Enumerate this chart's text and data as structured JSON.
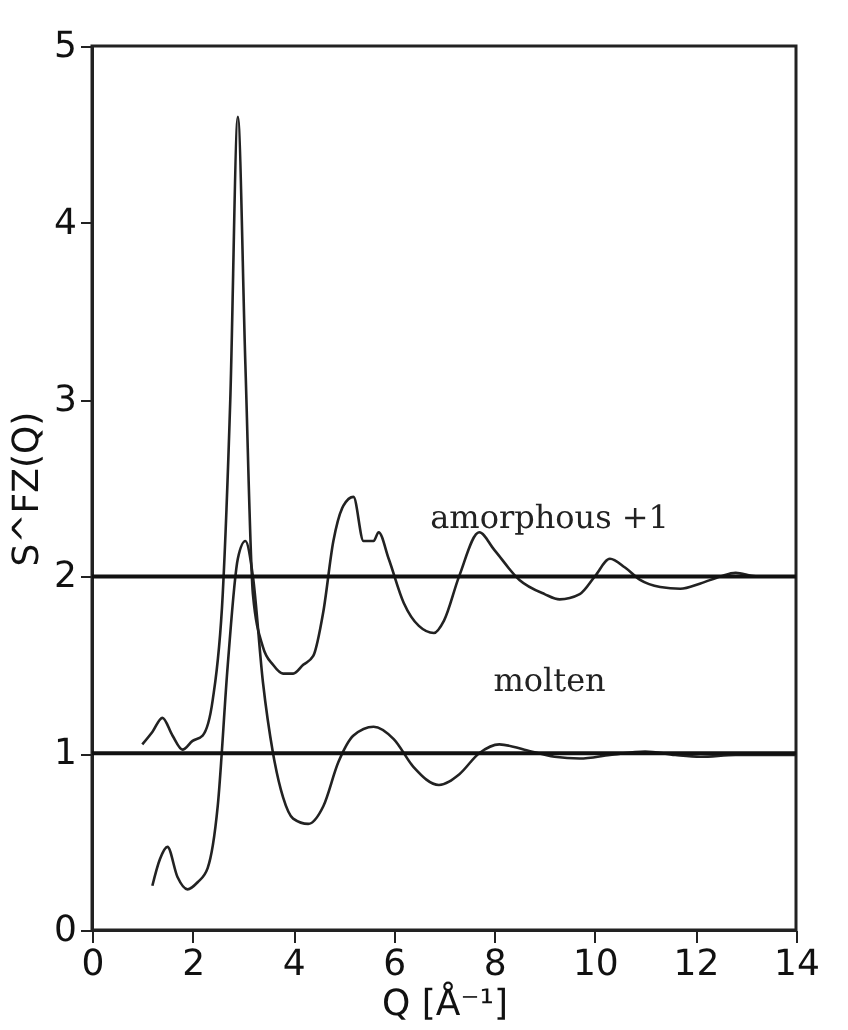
{
  "chart_data": {
    "type": "line",
    "xlabel": "Q [Å⁻¹]",
    "ylabel": "S^FZ(Q)",
    "xlim": [
      0,
      14
    ],
    "ylim": [
      0,
      5
    ],
    "xticks": [
      0,
      2,
      4,
      6,
      8,
      10,
      12,
      14
    ],
    "yticks": [
      0,
      1,
      2,
      3,
      4,
      5
    ],
    "grid": false,
    "marker": "none",
    "line_style": "solid",
    "series": [
      {
        "name": "amorphous +1",
        "color": "#222222",
        "x": [
          1.0,
          1.2,
          1.4,
          1.6,
          1.8,
          2.0,
          2.2,
          2.4,
          2.6,
          2.75,
          2.9,
          3.05,
          3.2,
          3.4,
          3.6,
          3.8,
          4.0,
          4.2,
          4.4,
          4.6,
          4.8,
          5.0,
          5.2,
          5.4,
          5.6,
          5.7,
          5.9,
          6.2,
          6.5,
          6.8,
          7.0,
          7.3,
          7.7,
          8.0,
          8.5,
          9.0,
          9.3,
          9.7,
          10.0,
          10.3,
          10.6,
          10.9,
          11.3,
          11.7,
          12.1,
          12.5,
          12.8,
          13.2,
          14.0
        ],
        "values": [
          1.05,
          1.12,
          1.2,
          1.1,
          1.02,
          1.07,
          1.1,
          1.3,
          1.9,
          3.0,
          4.6,
          3.2,
          1.9,
          1.6,
          1.5,
          1.45,
          1.45,
          1.5,
          1.55,
          1.8,
          2.2,
          2.4,
          2.45,
          2.2,
          2.2,
          2.25,
          2.1,
          1.85,
          1.72,
          1.68,
          1.75,
          2.0,
          2.25,
          2.15,
          1.98,
          1.9,
          1.87,
          1.9,
          2.0,
          2.1,
          2.05,
          1.98,
          1.94,
          1.93,
          1.96,
          2.0,
          2.02,
          2.0,
          2.0
        ]
      },
      {
        "name": "molten",
        "color": "#222222",
        "x": [
          1.2,
          1.35,
          1.5,
          1.7,
          1.9,
          2.1,
          2.3,
          2.5,
          2.7,
          2.9,
          3.05,
          3.2,
          3.4,
          3.6,
          3.8,
          4.0,
          4.3,
          4.6,
          4.9,
          5.2,
          5.6,
          6.0,
          6.4,
          6.9,
          7.3,
          7.7,
          8.1,
          8.6,
          9.2,
          9.7,
          10.3,
          11.0,
          11.6,
          12.1,
          12.8,
          14.0
        ],
        "values": [
          0.25,
          0.4,
          0.47,
          0.3,
          0.23,
          0.27,
          0.35,
          0.7,
          1.5,
          2.1,
          2.2,
          2.0,
          1.4,
          1.0,
          0.75,
          0.63,
          0.6,
          0.7,
          0.95,
          1.1,
          1.15,
          1.08,
          0.92,
          0.82,
          0.88,
          1.0,
          1.05,
          1.02,
          0.98,
          0.97,
          0.99,
          1.01,
          0.99,
          0.98,
          0.99,
          0.99
        ]
      }
    ],
    "ref_lines": [
      {
        "axis": "y",
        "value": 1,
        "color": "#111111"
      },
      {
        "axis": "y",
        "value": 2,
        "color": "#111111"
      }
    ]
  }
}
